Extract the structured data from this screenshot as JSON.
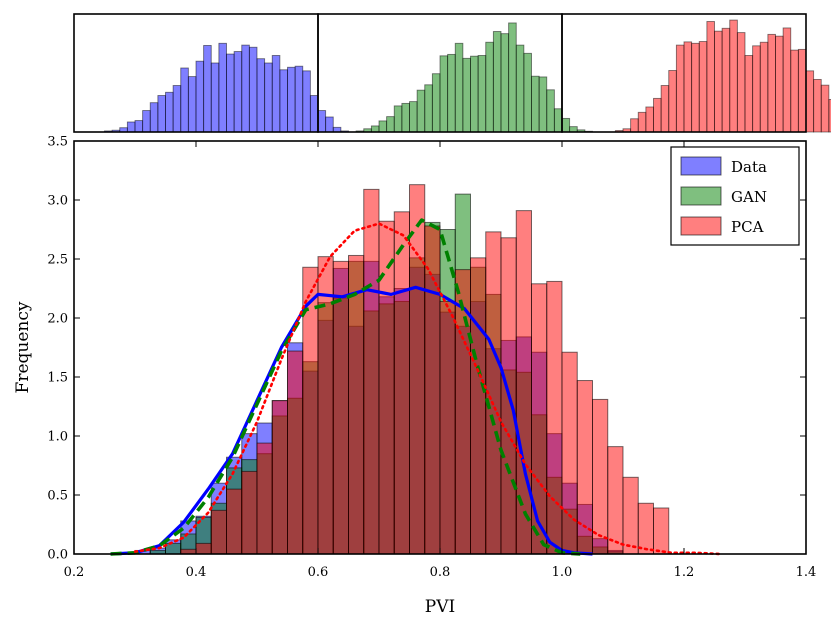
{
  "chart_data": {
    "type": "histogram",
    "xlabel": "PVI",
    "ylabel": "Frequency",
    "xlim": [
      0.2,
      1.4
    ],
    "ylim": [
      0.0,
      3.5
    ],
    "x_ticks": [
      "0.2",
      "0.4",
      "0.6",
      "0.8",
      "1.0",
      "1.2",
      "1.4"
    ],
    "y_ticks": [
      "0.0",
      "0.5",
      "1.0",
      "1.5",
      "2.0",
      "2.5",
      "3.0",
      "3.5"
    ],
    "grid": false,
    "legend_position": "top-right",
    "legend": [
      {
        "label": "Data",
        "color": "#0000ff"
      },
      {
        "label": "GAN",
        "color": "#008000"
      },
      {
        "label": "PCA",
        "color": "#ff0000"
      }
    ],
    "bin_width": 0.025,
    "series": [
      {
        "name": "Data",
        "color": "#0000ff",
        "bin_start": 0.3,
        "values": [
          0.03,
          0.05,
          0.12,
          0.28,
          0.32,
          0.6,
          0.82,
          1.02,
          1.11,
          1.3,
          1.79,
          1.55,
          1.98,
          2.42,
          1.93,
          2.48,
          2.18,
          2.25,
          2.43,
          2.37,
          2.05,
          1.93,
          2.14,
          1.74,
          1.81,
          1.84,
          1.71,
          1.02,
          0.6,
          0.42,
          0.13,
          0.03
        ]
      },
      {
        "name": "GAN",
        "color": "#008000",
        "bin_start": 0.325,
        "values": [
          0.03,
          0.09,
          0.17,
          0.31,
          0.43,
          0.73,
          0.8,
          0.85,
          1.17,
          1.32,
          1.63,
          2.13,
          2.17,
          2.48,
          2.06,
          2.12,
          2.14,
          2.51,
          2.81,
          2.75,
          3.05,
          2.43,
          2.2,
          1.56,
          1.54,
          1.18,
          0.65,
          0.38,
          0.15,
          0.06,
          0.02
        ]
      },
      {
        "name": "PCA",
        "color": "#ff0000",
        "bin_start": 0.375,
        "values": [
          0.04,
          0.09,
          0.37,
          0.55,
          0.7,
          0.94,
          1.3,
          1.72,
          2.43,
          2.52,
          2.48,
          2.53,
          3.09,
          2.82,
          2.9,
          3.13,
          2.78,
          2.14,
          2.41,
          2.51,
          2.73,
          2.68,
          2.91,
          2.29,
          2.31,
          1.71,
          1.47,
          1.31,
          0.91,
          0.65,
          0.43,
          0.39
        ]
      }
    ],
    "curves": [
      {
        "name": "Data KDE",
        "color": "#0000ff",
        "style": "solid",
        "x": [
          0.26,
          0.3,
          0.34,
          0.38,
          0.42,
          0.46,
          0.5,
          0.54,
          0.58,
          0.6,
          0.64,
          0.68,
          0.72,
          0.76,
          0.8,
          0.84,
          0.88,
          0.9,
          0.92,
          0.94,
          0.96,
          0.98,
          1.0,
          1.02,
          1.05
        ],
        "y": [
          0.0,
          0.01,
          0.07,
          0.27,
          0.55,
          0.85,
          1.3,
          1.75,
          2.1,
          2.2,
          2.18,
          2.24,
          2.2,
          2.26,
          2.2,
          2.08,
          1.82,
          1.58,
          1.22,
          0.68,
          0.28,
          0.1,
          0.03,
          0.01,
          0.0
        ]
      },
      {
        "name": "GAN KDE",
        "color": "#008000",
        "style": "dashed",
        "x": [
          0.26,
          0.3,
          0.34,
          0.38,
          0.42,
          0.46,
          0.5,
          0.54,
          0.58,
          0.62,
          0.66,
          0.7,
          0.74,
          0.77,
          0.8,
          0.83,
          0.86,
          0.9,
          0.94,
          0.97,
          1.0,
          1.03
        ],
        "y": [
          0.0,
          0.01,
          0.07,
          0.22,
          0.48,
          0.82,
          1.27,
          1.72,
          2.07,
          2.12,
          2.2,
          2.32,
          2.62,
          2.83,
          2.75,
          2.22,
          1.62,
          0.88,
          0.34,
          0.08,
          0.01,
          0.0
        ]
      },
      {
        "name": "PCA KDE",
        "color": "#ff0000",
        "style": "dotted",
        "x": [
          0.3,
          0.34,
          0.38,
          0.42,
          0.46,
          0.5,
          0.54,
          0.58,
          0.62,
          0.66,
          0.7,
          0.74,
          0.78,
          0.82,
          0.86,
          0.9,
          0.94,
          0.98,
          1.02,
          1.06,
          1.1,
          1.14,
          1.18,
          1.22,
          1.26
        ],
        "y": [
          0.02,
          0.05,
          0.14,
          0.35,
          0.68,
          1.12,
          1.65,
          2.14,
          2.52,
          2.74,
          2.8,
          2.7,
          2.42,
          2.02,
          1.58,
          1.12,
          0.76,
          0.49,
          0.29,
          0.16,
          0.08,
          0.04,
          0.01,
          0.01,
          0.0
        ]
      }
    ]
  }
}
